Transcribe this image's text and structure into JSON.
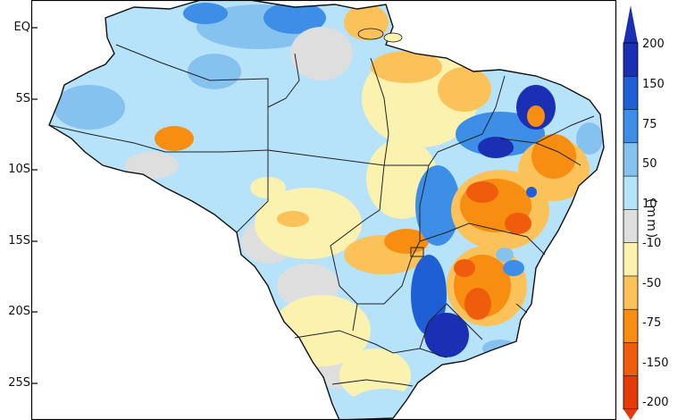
{
  "map": {
    "latitude_labels": [
      "EQ",
      "5S",
      "10S",
      "15S",
      "20S",
      "25S"
    ],
    "region": "Brazil"
  },
  "colorbar": {
    "unit": "(mm)",
    "tick_labels": [
      "200",
      "150",
      "75",
      "50",
      "10",
      "-10",
      "-50",
      "-75",
      "-150",
      "-200"
    ],
    "bins": [
      {
        "color": "#1a2fb3"
      },
      {
        "color": "#1f5fd6"
      },
      {
        "color": "#3d8ee6"
      },
      {
        "color": "#86c2f0"
      },
      {
        "color": "#b6e2fa"
      },
      {
        "color": "#dedede"
      },
      {
        "color": "#fbf2b0"
      },
      {
        "color": "#fbc25a"
      },
      {
        "color": "#f78e12"
      },
      {
        "color": "#ef5d0c"
      },
      {
        "color": "#e53a06"
      }
    ],
    "top_arrow_color": "#1a2fb3",
    "bottom_arrow_color": "#e53a06"
  }
}
